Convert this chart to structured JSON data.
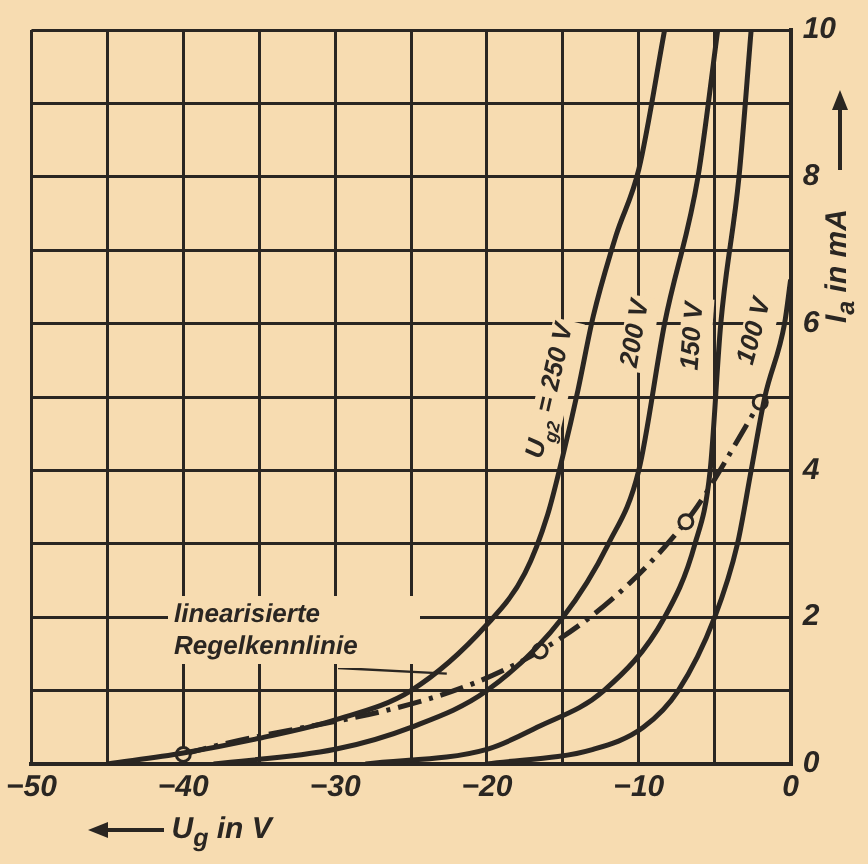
{
  "chart_data": {
    "type": "line",
    "xlabel": "U$_{g}$ in V",
    "ylabel": "I$_{a}$ in mA",
    "xlim": [
      -50,
      0
    ],
    "ylim": [
      0,
      10
    ],
    "xticks": [
      -50,
      {
        "value": -45,
        "label": null
      },
      -40,
      {
        "value": -35,
        "label": null
      },
      -30,
      {
        "value": -25,
        "label": null
      },
      -20,
      {
        "value": -15,
        "label": null
      },
      -10,
      {
        "value": -5,
        "label": null
      },
      0
    ],
    "yticks": [
      0,
      {
        "value": 1,
        "label": null
      },
      2,
      {
        "value": 3,
        "label": null
      },
      4,
      {
        "value": 5,
        "label": null
      },
      6,
      {
        "value": 7,
        "label": null
      },
      8,
      {
        "value": 9,
        "label": null
      },
      10
    ],
    "grid": true,
    "legend": false,
    "marker": "none",
    "line_style": "solid",
    "series": [
      {
        "name": "U$_{g2}$ = 250 V",
        "color": "#2a2622",
        "x": [
          -45,
          -40,
          -35,
          -30,
          -25,
          -20,
          -17.5,
          -16,
          -15,
          -14,
          -13,
          -11.5,
          -10,
          -8.3
        ],
        "values": [
          0,
          0.15,
          0.35,
          0.6,
          1.0,
          1.9,
          2.6,
          3.4,
          4.2,
          5.1,
          6.1,
          7.2,
          8.1,
          10
        ]
      },
      {
        "name": "200 V",
        "color": "#2a2622",
        "x": [
          -38,
          -30,
          -25,
          -20,
          -15,
          -12,
          -10,
          -8.3,
          -6.1,
          -4.8
        ],
        "values": [
          0,
          0.2,
          0.5,
          1.0,
          2.0,
          3.0,
          4.0,
          6,
          8,
          10
        ]
      },
      {
        "name": "150 V",
        "color": "#2a2622",
        "x": [
          -28,
          -20,
          -16.7,
          -12.3,
          -8.3,
          -6.3,
          -5.3,
          -4.6,
          -3.4,
          -2.6
        ],
        "values": [
          0,
          0.2,
          0.5,
          1,
          2,
          3,
          4,
          6,
          8,
          10
        ]
      },
      {
        "name": "100 V",
        "color": "#2a2622",
        "x": [
          -20,
          -13,
          -9.7,
          -7.4,
          -5,
          -3.5,
          -2.6,
          -1.7,
          -0.4,
          0
        ],
        "values": [
          0,
          0.2,
          0.5,
          1,
          2,
          3,
          4,
          5,
          6,
          6.6
        ]
      },
      {
        "name": "linearisierte Regelkennlinie",
        "color": "#2a2622",
        "line_style": "dashed",
        "marker": "circle",
        "x": [
          -40,
          -16.5,
          -6.9,
          -2
        ],
        "values": [
          0.13,
          1.54,
          3.3,
          4.93
        ]
      }
    ]
  }
}
